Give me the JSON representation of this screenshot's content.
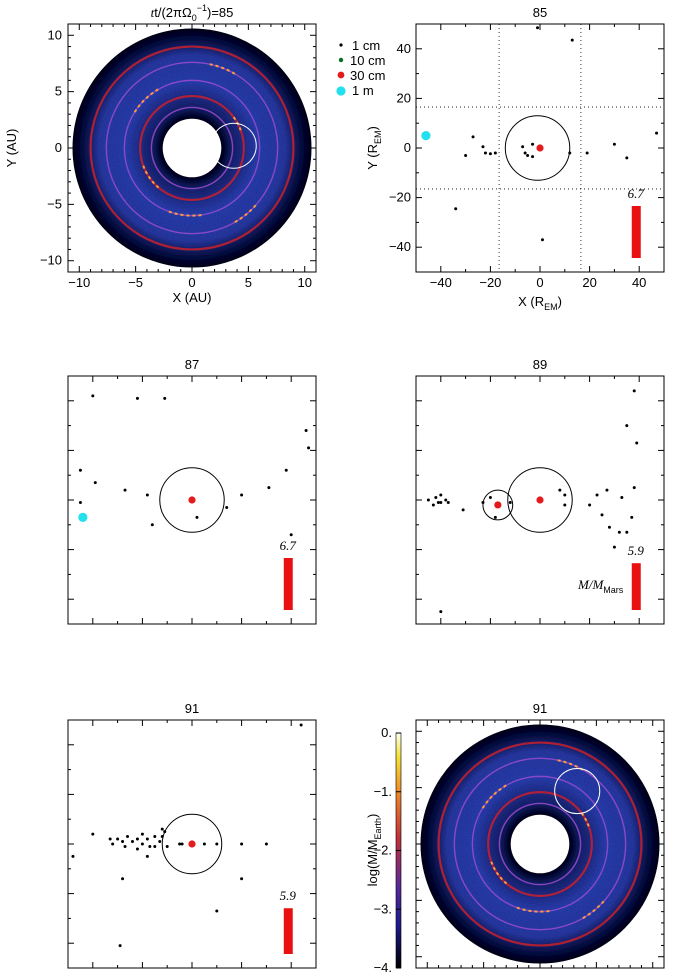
{
  "colors": {
    "frame": "#000000",
    "disk_blue": "#2a3fb0",
    "disk_dark": "#05061a",
    "ring_red": "#c8202c",
    "clump_orange": "#ff9a3c",
    "size_1cm": "#000000",
    "size_10cm": "#0b6e1e",
    "size_30cm": "#e41a1c",
    "size_1m": "#22e0ee",
    "mass_bar": "#e81010"
  },
  "legend": [
    {
      "label": "1 cm"
    },
    {
      "label": "10 cm"
    },
    {
      "label": "30 cm"
    },
    {
      "label": "1 m"
    }
  ],
  "chart_data": [
    {
      "type": "heatmap",
      "panel": "disk-top",
      "title_main": "t/(2πΩ",
      "title_sub": "0",
      "title_sup": "−1",
      "title_end": ")=85",
      "xlabel": "X (AU)",
      "ylabel": "Y (AU)",
      "xlim": [
        -11,
        11
      ],
      "ylim": [
        -11,
        11
      ],
      "xticks": [
        "−10",
        "−5",
        "0",
        "5",
        "10"
      ],
      "yticks": [
        "10",
        "5",
        "0",
        "−5",
        "−10"
      ],
      "inner_radius": 2.6,
      "outer_radius": 10.6,
      "rings": [
        3.6,
        4.6,
        6.0,
        7.6,
        9.0
      ],
      "highlight_circle": {
        "x": 3.7,
        "y": 0.2,
        "r": 2.0
      }
    },
    {
      "type": "scatter",
      "panel": "zoom-85",
      "title": "85",
      "xlabel": "X (R",
      "xlabel_sub": "EM",
      "xlabel_end": ")",
      "ylabel": "Y (R",
      "ylabel_sub": "EM",
      "ylabel_end": ")",
      "xlim": [
        -50,
        50
      ],
      "ylim": [
        -50,
        50
      ],
      "xticks": [
        "−40",
        "−20",
        "0",
        "20",
        "40"
      ],
      "yticks": [
        "40",
        "20",
        "0",
        "−20",
        "−40"
      ],
      "grid_dotted": [
        -16.5,
        16.5
      ],
      "hill_circles": [
        {
          "x": -1,
          "y": 0,
          "r": 13
        }
      ],
      "mass_label": "6.7",
      "mass_bar_fraction": 1.0,
      "points_1cm": [
        [
          -1,
          48.5
        ],
        [
          13,
          43.5
        ],
        [
          -34,
          -24.5
        ],
        [
          1,
          -37
        ],
        [
          -30,
          -3
        ],
        [
          -27,
          4.5
        ],
        [
          -23,
          0.5
        ],
        [
          -22,
          -2
        ],
        [
          -20,
          -2.3
        ],
        [
          -18,
          -2
        ],
        [
          -7,
          0.5
        ],
        [
          -6,
          -2
        ],
        [
          -5,
          -3
        ],
        [
          -3,
          1.5
        ],
        [
          -3,
          -3.5
        ],
        [
          12,
          -2
        ],
        [
          19,
          -2
        ],
        [
          30,
          1.5
        ],
        [
          35,
          -4
        ],
        [
          47,
          6
        ]
      ],
      "points_30cm": [
        [
          0,
          0
        ]
      ],
      "points_1m": [
        [
          -46,
          5
        ]
      ]
    },
    {
      "type": "scatter",
      "panel": "zoom-87",
      "title": "87",
      "xlim": [
        -50,
        50
      ],
      "ylim": [
        -50,
        50
      ],
      "hill_circles": [
        {
          "x": 0,
          "y": 0,
          "r": 13
        }
      ],
      "mass_label": "6.7",
      "mass_bar_fraction": 1.0,
      "points_1cm": [
        [
          -40,
          42
        ],
        [
          -22,
          41
        ],
        [
          -11,
          41
        ],
        [
          -45,
          12
        ],
        [
          -39,
          7
        ],
        [
          -45,
          -1
        ],
        [
          -27,
          4
        ],
        [
          -16,
          -10
        ],
        [
          -18,
          2
        ],
        [
          2,
          -7
        ],
        [
          14,
          -3
        ],
        [
          20,
          2
        ],
        [
          31,
          5
        ],
        [
          38,
          12
        ],
        [
          40,
          -14
        ],
        [
          46,
          28
        ],
        [
          47,
          21
        ]
      ],
      "points_30cm": [
        [
          0,
          0
        ]
      ],
      "points_1m": [
        [
          -44,
          -7
        ]
      ]
    },
    {
      "type": "scatter",
      "panel": "zoom-89",
      "title": "89",
      "xlim": [
        -50,
        50
      ],
      "ylim": [
        -50,
        50
      ],
      "hill_circles": [
        {
          "x": 0,
          "y": 0,
          "r": 13
        },
        {
          "x": -17,
          "y": -2,
          "r": 6
        }
      ],
      "mass_label": "5.9",
      "mass_units": "M/M",
      "mass_units_sub": "Mars",
      "mass_bar_fraction": 0.9,
      "points_1cm": [
        [
          -45,
          0
        ],
        [
          -43,
          -2
        ],
        [
          -42,
          1
        ],
        [
          -41,
          -1
        ],
        [
          -40,
          2
        ],
        [
          -40,
          -1
        ],
        [
          -38,
          0
        ],
        [
          -37,
          -1
        ],
        [
          -31,
          -4
        ],
        [
          -23,
          -1
        ],
        [
          -20,
          1
        ],
        [
          -18,
          -7
        ],
        [
          -12,
          -1
        ],
        [
          8,
          4
        ],
        [
          10,
          -2
        ],
        [
          10,
          2
        ],
        [
          20,
          -2
        ],
        [
          23,
          2
        ],
        [
          25,
          -6
        ],
        [
          27,
          4
        ],
        [
          28,
          -11
        ],
        [
          30,
          -19
        ],
        [
          32,
          -13
        ],
        [
          35,
          -13
        ],
        [
          37,
          -7
        ],
        [
          38,
          5
        ],
        [
          39,
          23
        ],
        [
          -40,
          -45
        ],
        [
          33,
          1
        ],
        [
          35,
          30
        ],
        [
          38,
          44
        ]
      ],
      "points_30cm": [
        [
          0,
          0
        ],
        [
          -17,
          -2
        ]
      ]
    },
    {
      "type": "scatter",
      "panel": "zoom-91",
      "title": "91",
      "xlim": [
        -50,
        50
      ],
      "ylim": [
        -50,
        50
      ],
      "hill_circles": [
        {
          "x": 0,
          "y": 0,
          "r": 12
        }
      ],
      "mass_label": "5.9",
      "mass_bar_fraction": 0.88,
      "points_1cm": [
        [
          -48,
          -5
        ],
        [
          -40,
          4
        ],
        [
          -33,
          2
        ],
        [
          -32,
          0
        ],
        [
          -30,
          2
        ],
        [
          -28,
          1
        ],
        [
          -27,
          -1
        ],
        [
          -26,
          3
        ],
        [
          -24,
          1
        ],
        [
          -22,
          2
        ],
        [
          -22,
          -2
        ],
        [
          -20,
          0
        ],
        [
          -18,
          2
        ],
        [
          -17,
          -1
        ],
        [
          -15,
          3
        ],
        [
          -15,
          -1
        ],
        [
          -13,
          1
        ],
        [
          -12,
          3
        ],
        [
          -11,
          5
        ],
        [
          -10,
          -1
        ],
        [
          -5,
          0
        ],
        [
          -4,
          0
        ],
        [
          5,
          0
        ],
        [
          10,
          0
        ],
        [
          20,
          0
        ],
        [
          30,
          0
        ],
        [
          -28,
          -14
        ],
        [
          -18,
          -5
        ],
        [
          -20,
          4
        ],
        [
          -12,
          6
        ],
        [
          10,
          -27
        ],
        [
          20,
          -14
        ],
        [
          -29,
          -41
        ],
        [
          44,
          48
        ]
      ],
      "points_30cm": [
        [
          0,
          0
        ]
      ]
    },
    {
      "type": "heatmap",
      "panel": "disk-bottom",
      "title": "91",
      "xlim": [
        -11,
        11
      ],
      "ylim": [
        -11,
        11
      ],
      "inner_radius": 2.6,
      "outer_radius": 10.6,
      "rings": [
        3.6,
        4.6,
        6.0,
        7.6,
        9.0
      ],
      "highlight_circle": {
        "x": 3.3,
        "y": 4.7,
        "r": 2.0
      },
      "colorbar": {
        "label_pre": "log(M/M",
        "label_sub": "Earth",
        "label_end": ")",
        "ticks": [
          "0.",
          "−1.",
          "−2.",
          "−3.",
          "−4."
        ],
        "range": [
          -4,
          0
        ]
      }
    }
  ]
}
